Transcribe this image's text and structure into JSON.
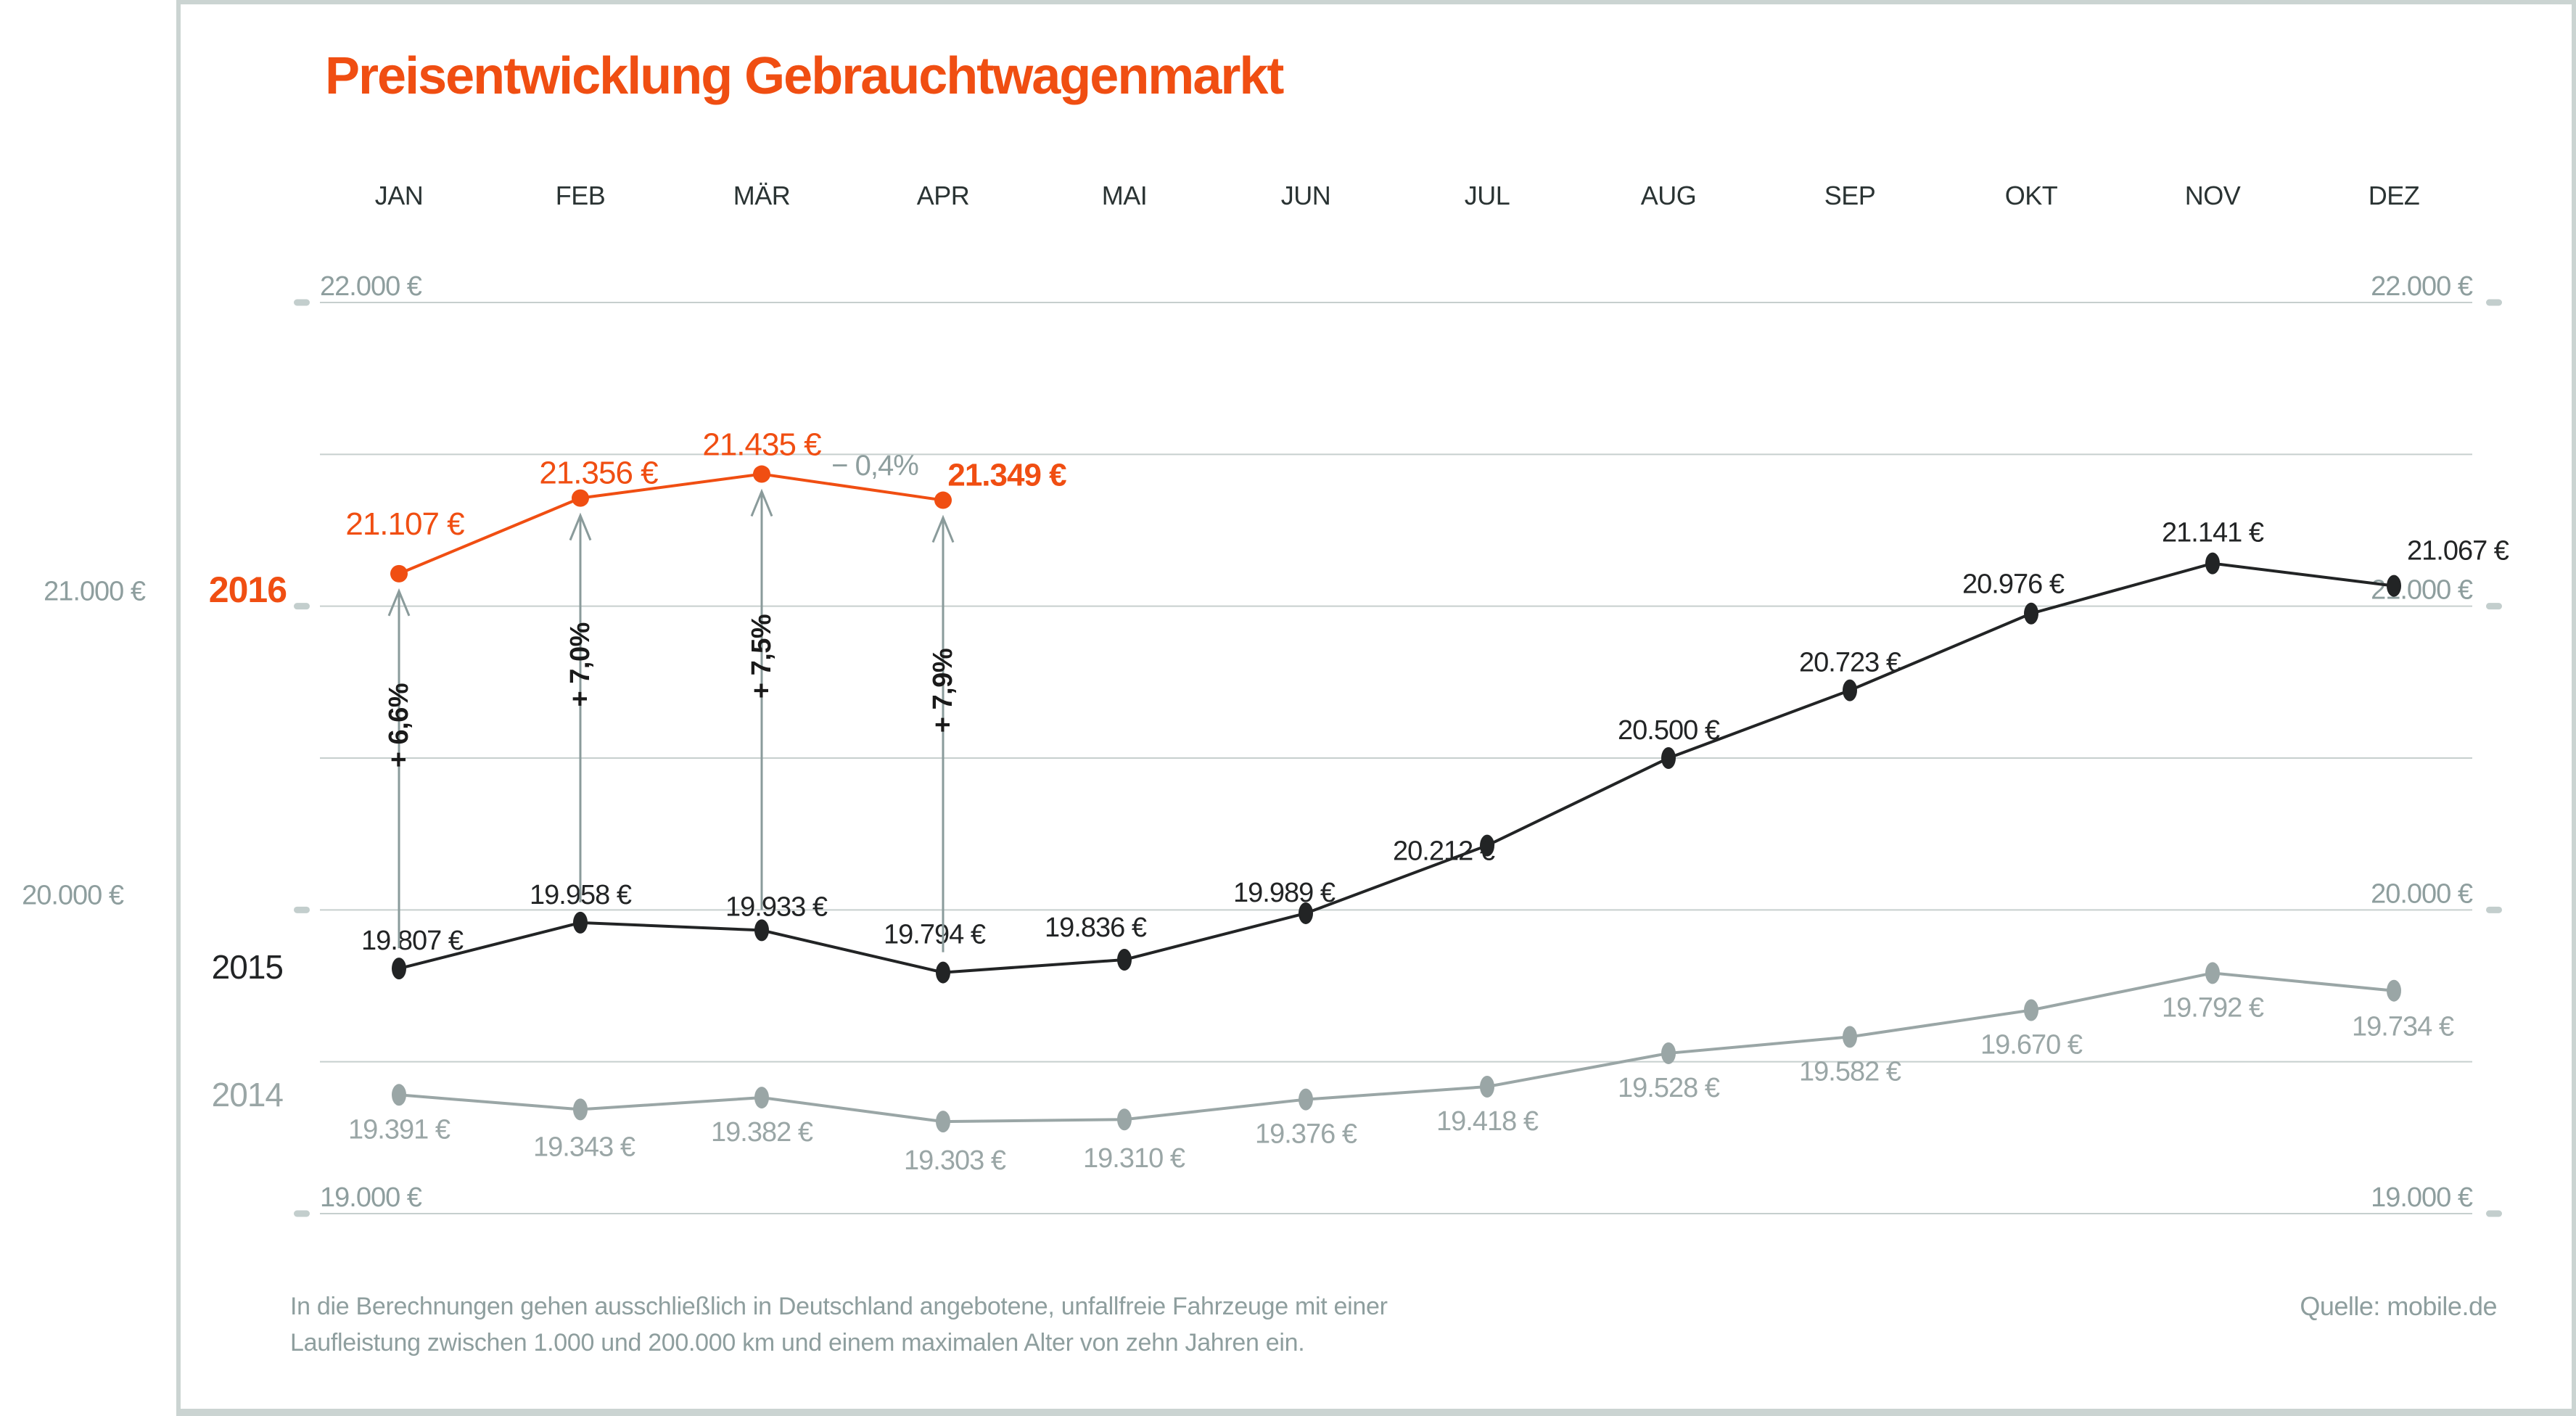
{
  "title": "Preisentwicklung Gebrauchtwagenmarkt",
  "footnote": {
    "line1": "In die Berechnungen gehen ausschließlich in Deutschland angebotene, unfallfreie Fahrzeuge mit einer",
    "line2": "Laufleistung zwischen 1.000 und 200.000 km und einem maximalen Alter von zehn Jahren ein."
  },
  "source": "Quelle: mobile.de",
  "colors": {
    "accent_orange": "#F04E12",
    "black_series": "#222425",
    "gray_series": "#9AA6A6",
    "axis_text": "#8E9E9E",
    "month_text": "#2A3333",
    "gridline": "#C6CFCE",
    "tick": "#C3CECD",
    "arrow": "#8A9B9B",
    "percent_text": "#1A1A1A",
    "frame": "#CBD4D2",
    "note_text": "#8E9E9E"
  },
  "chart_data": {
    "type": "line",
    "title": "Preisentwicklung Gebrauchtwagenmarkt",
    "categories": [
      "JAN",
      "FEB",
      "MÄR",
      "APR",
      "MAI",
      "JUN",
      "JUL",
      "AUG",
      "SEP",
      "OKT",
      "NOV",
      "DEZ"
    ],
    "ylim": [
      19000,
      22000
    ],
    "grid": true,
    "gridline_values": [
      22000,
      21500,
      21000,
      20500,
      20000,
      19500,
      19000
    ],
    "axis_labels": [
      {
        "value": 22000,
        "label": "22.000 €",
        "left_inside": true,
        "right_inside": true,
        "left_outside": false
      },
      {
        "value": 21000,
        "label": "21.000 €",
        "left_inside": false,
        "right_inside": true,
        "left_outside": true
      },
      {
        "value": 20000,
        "label": "20.000 €",
        "left_inside": false,
        "right_inside": true,
        "left_outside": true
      },
      {
        "value": 19000,
        "label": "19.000 €",
        "left_inside": true,
        "right_inside": true,
        "left_outside": false
      }
    ],
    "series": [
      {
        "name": "2016",
        "color_key": "accent_orange",
        "values": [
          21107,
          21356,
          21435,
          21349
        ],
        "point_labels": [
          "21.107 €",
          "21.356 €",
          "21.435 €",
          "21.349 €"
        ]
      },
      {
        "name": "2015",
        "color_key": "black_series",
        "values": [
          19807,
          19958,
          19933,
          19794,
          19836,
          19989,
          20212,
          20500,
          20723,
          20976,
          21141,
          21067
        ],
        "point_labels": [
          "19.807 €",
          "19.958 €",
          "19.933 €",
          "19.794 €",
          "19.836 €",
          "19.989 €",
          "20.212 €",
          "20.500 €",
          "20.723 €",
          "20.976 €",
          "21.141 €",
          "21.067 €"
        ]
      },
      {
        "name": "2014",
        "color_key": "gray_series",
        "values": [
          19391,
          19343,
          19382,
          19303,
          19310,
          19376,
          19418,
          19528,
          19582,
          19670,
          19792,
          19734
        ],
        "point_labels": [
          "19.391 €",
          "19.343 €",
          "19.382 €",
          "19.303 €",
          "19.310 €",
          "19.376 €",
          "19.418 €",
          "19.528 €",
          "19.582 €",
          "19.670 €",
          "19.792 €",
          "19.734 €"
        ]
      }
    ],
    "annotations": {
      "apr_decline_label": "− 0,4%",
      "yoy_arrows": [
        {
          "month": "JAN",
          "label": "+ 6,6%"
        },
        {
          "month": "FEB",
          "label": "+ 7,0%"
        },
        {
          "month": "MÄR",
          "label": "+ 7,5%"
        },
        {
          "month": "APR",
          "label": "+ 7,9%"
        }
      ]
    }
  }
}
